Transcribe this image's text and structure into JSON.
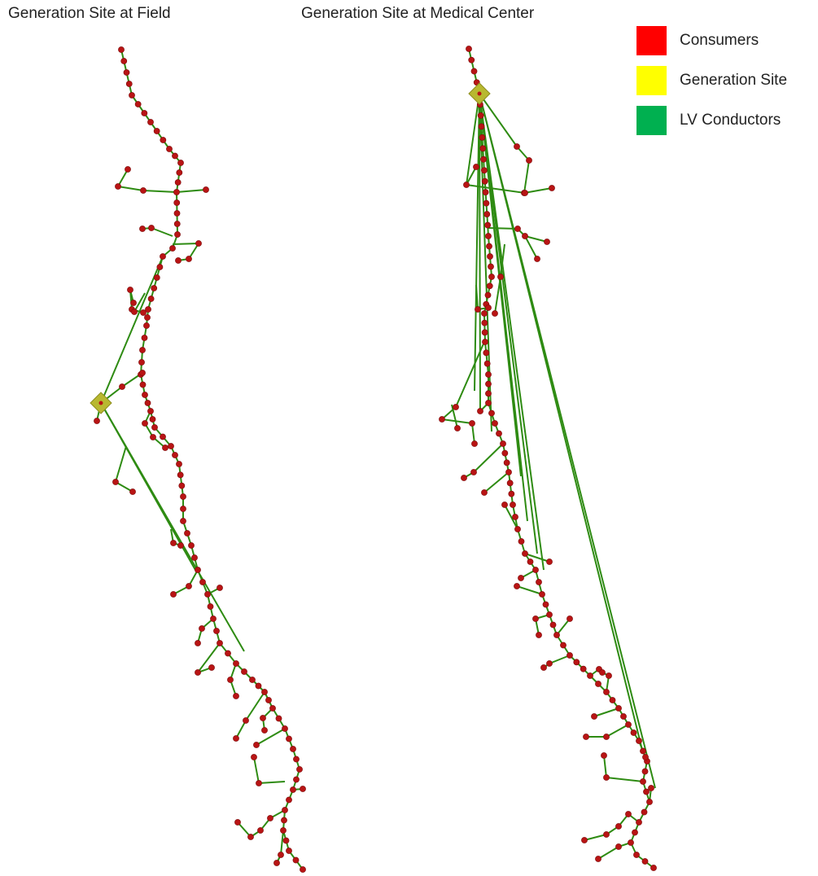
{
  "titles": {
    "left": "Generation Site at Field",
    "right": "Generation Site at Medical Center"
  },
  "legend": [
    {
      "label": "Consumers",
      "color": "#ff0000"
    },
    {
      "label": "Generation Site",
      "color": "#ffff00"
    },
    {
      "label": "LV Conductors",
      "color": "#00b050"
    }
  ],
  "colors": {
    "consumer_node": "#b81414",
    "conductor_line": "#2e8b12",
    "generation_marker": "#b8b830",
    "node_outline": "#7a0a0a"
  }
}
